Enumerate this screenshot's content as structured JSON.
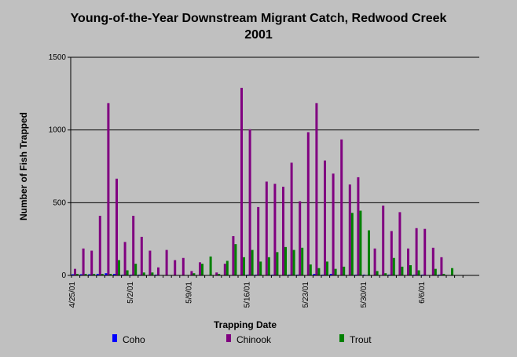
{
  "chart_data": {
    "type": "bar",
    "title": "Young-of-the-Year Downstream Migrant Catch, Redwood Creek",
    "subtitle": "2001",
    "xlabel": "Trapping Date",
    "ylabel": "Number of Fish Trapped",
    "ylim": [
      0,
      1500
    ],
    "y_ticks": [
      0,
      500,
      1000,
      1500
    ],
    "grid": "horizontal",
    "legend_position": "bottom",
    "colors": {
      "Coho": "#0000ff",
      "Chinook": "#800080",
      "Trout": "#008000"
    },
    "x_tick_labels": [
      "4/25/01",
      "5/2/01",
      "5/9/01",
      "5/16/01",
      "5/23/01",
      "5/30/01",
      "6/6/01"
    ],
    "x_tick_label_index": [
      0,
      7,
      14,
      21,
      28,
      35,
      42
    ],
    "categories": [
      "4/25/01",
      "4/26/01",
      "4/27/01",
      "4/28/01",
      "4/29/01",
      "4/30/01",
      "5/1/01",
      "5/2/01",
      "5/3/01",
      "5/4/01",
      "5/5/01",
      "5/6/01",
      "5/7/01",
      "5/8/01",
      "5/9/01",
      "5/10/01",
      "5/11/01",
      "5/12/01",
      "5/13/01",
      "5/14/01",
      "5/15/01",
      "5/16/01",
      "5/17/01",
      "5/18/01",
      "5/19/01",
      "5/20/01",
      "5/21/01",
      "5/22/01",
      "5/23/01",
      "5/24/01",
      "5/25/01",
      "5/26/01",
      "5/27/01",
      "5/28/01",
      "5/29/01",
      "5/30/01",
      "5/31/01",
      "6/1/01",
      "6/2/01",
      "6/3/01",
      "6/4/01",
      "6/5/01",
      "6/6/01",
      "6/7/01",
      "6/8/01",
      "6/9/01",
      "6/10/01"
    ],
    "series": [
      {
        "name": "Coho",
        "values": [
          8,
          8,
          8,
          10,
          15,
          10,
          5,
          5,
          5,
          0,
          5,
          0,
          0,
          0,
          0,
          0,
          0,
          0,
          0,
          0,
          0,
          5,
          5,
          0,
          5,
          0,
          5,
          5,
          0,
          10,
          5,
          10,
          0,
          0,
          5,
          5,
          0,
          0,
          5,
          0,
          0,
          5,
          5,
          0,
          5,
          0,
          0
        ]
      },
      {
        "name": "Chinook",
        "values": [
          45,
          185,
          170,
          410,
          1185,
          665,
          230,
          410,
          265,
          170,
          55,
          175,
          105,
          120,
          30,
          90,
          0,
          20,
          80,
          270,
          1290,
          1005,
          470,
          645,
          630,
          610,
          775,
          510,
          985,
          1185,
          790,
          700,
          935,
          625,
          675,
          0,
          185,
          480,
          305,
          435,
          185,
          325,
          320,
          190,
          125,
          0,
          0
        ]
      },
      {
        "name": "Trout",
        "values": [
          10,
          10,
          10,
          10,
          10,
          105,
          35,
          80,
          20,
          20,
          0,
          0,
          0,
          0,
          15,
          80,
          130,
          10,
          100,
          215,
          125,
          175,
          95,
          125,
          160,
          195,
          175,
          190,
          75,
          50,
          95,
          45,
          60,
          430,
          445,
          310,
          30,
          15,
          120,
          60,
          70,
          35,
          0,
          45,
          10,
          50,
          0
        ]
      }
    ]
  },
  "legend": {
    "items": [
      "Coho",
      "Chinook",
      "Trout"
    ]
  }
}
